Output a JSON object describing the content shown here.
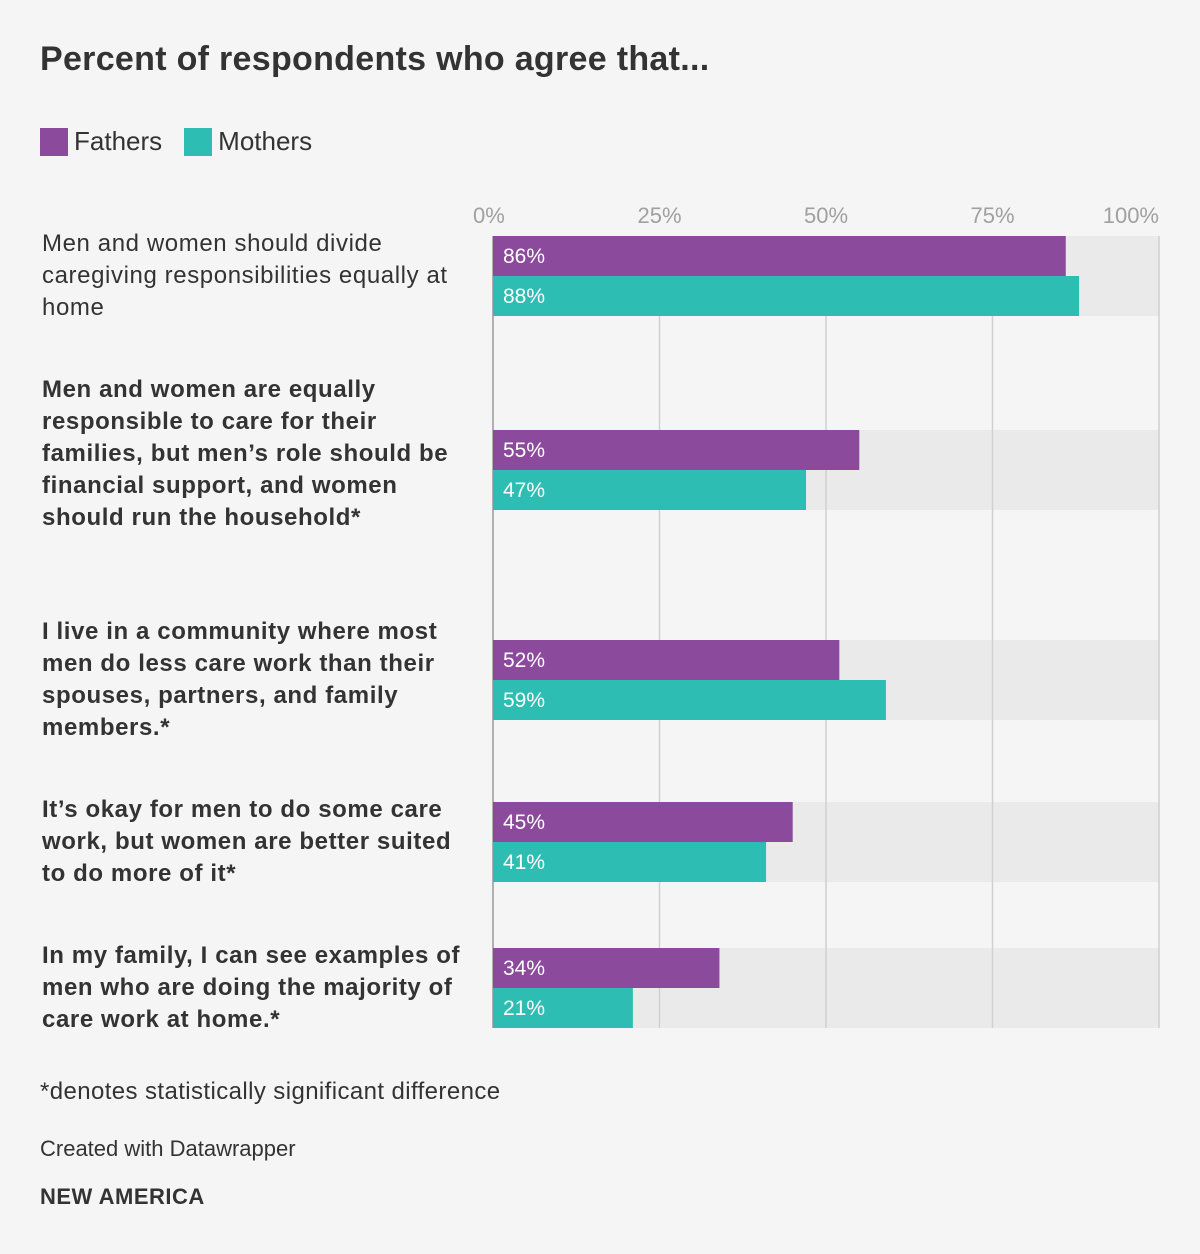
{
  "chart_data": {
    "type": "bar",
    "orientation": "horizontal",
    "title": "Percent of respondents who agree that...",
    "xlim": [
      0,
      100
    ],
    "ticks": [
      0,
      25,
      50,
      75,
      100
    ],
    "tick_labels": [
      "0%",
      "25%",
      "50%",
      "75%",
      "100%"
    ],
    "grid": true,
    "legend_placement": "top-left",
    "categories": [
      "Men and women should divide caregiving responsibilities equally at home",
      "Men and women are equally responsible to care for their families, but men’s role should be financial support, and women should run the household*",
      "I live in a community where most men do less care work than their spouses, partners, and family members.*",
      "It’s okay for men to do some care work, but women are better suited to do more of it*",
      "In my family, I can see examples of men who are doing the majority of care work at home.*"
    ],
    "series": [
      {
        "name": "Fathers",
        "color": "#8c4a9c",
        "values": [
          86,
          55,
          52,
          45,
          34
        ],
        "labels": [
          "86%",
          "55%",
          "52%",
          "45%",
          "34%"
        ]
      },
      {
        "name": "Mothers",
        "color": "#2ebdb3",
        "values": [
          88,
          47,
          59,
          41,
          21
        ],
        "labels": [
          "88%",
          "47%",
          "59%",
          "41%",
          "21%"
        ]
      }
    ]
  },
  "footnote": "*denotes statistically significant difference",
  "credit": "Created with Datawrapper",
  "brand": "NEW AMERICA",
  "colors": {
    "background": "#f5f5f5",
    "track": "#eaeaea",
    "grid": "#d0d0d0",
    "axis": "#b0b0b0",
    "tick_text": "#a0a0a0",
    "text": "#333333"
  }
}
